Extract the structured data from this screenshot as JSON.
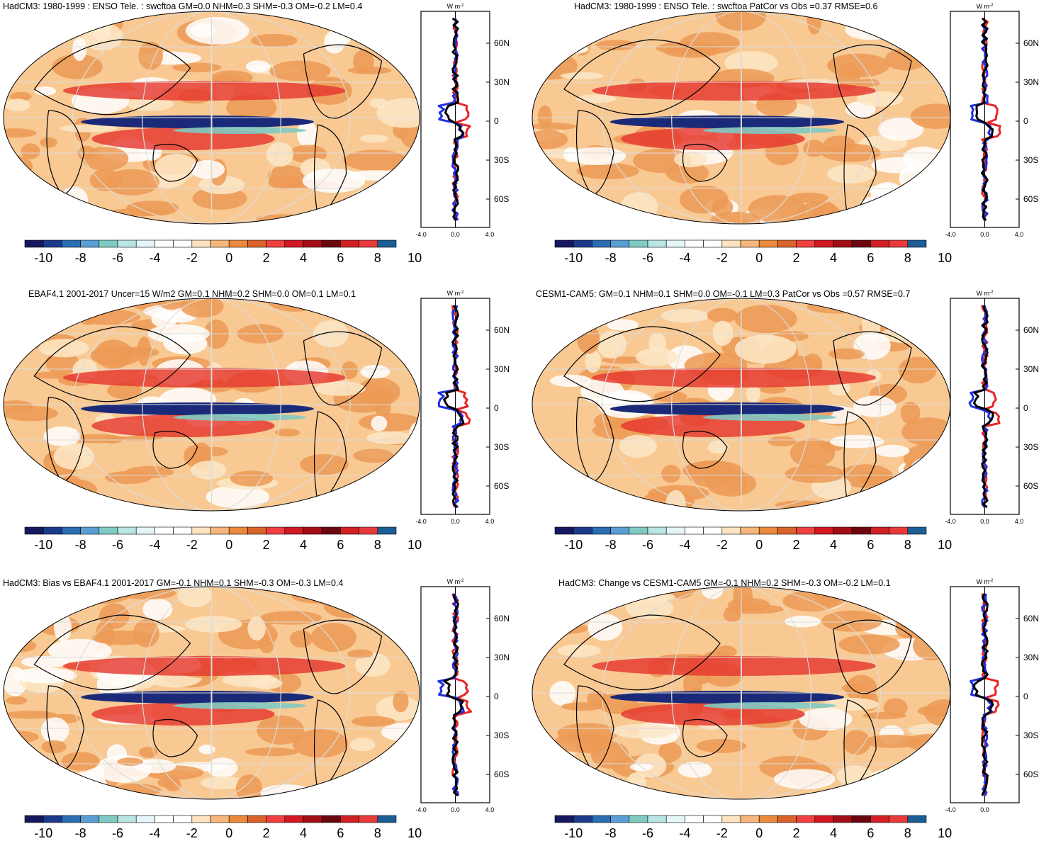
{
  "colorbar": {
    "colors": [
      "#15185e",
      "#1b3a8c",
      "#2a6db2",
      "#5a9ed6",
      "#7fcbc4",
      "#b9e6e2",
      "#e5f6f8",
      "#ffffff",
      "#ffffff",
      "#fde3c0",
      "#f7b77c",
      "#ec8a3c",
      "#d9632a",
      "#f14040",
      "#d21822",
      "#a30d15",
      "#6b0610",
      "#d11f24",
      "#e83a3a",
      "#1b5e95"
    ],
    "tick_labels": [
      "-10",
      "-8",
      "-6",
      "-4",
      "-2",
      "0",
      "2",
      "4",
      "6",
      "8",
      "10"
    ]
  },
  "profile": {
    "unit": "W m",
    "unit_sup": "-2",
    "lat_labels": [
      "60N",
      "30N",
      "0",
      "30S",
      "60S"
    ],
    "x_labels": [
      "-4.0",
      "0.0",
      "4.0"
    ]
  },
  "panels": [
    {
      "title": "HadCM3: 1980-1999 : ENSO Tele. : swcftoa GM=0.0 NHM=0.3 SHM=-0.3 OM=-0.2 LM=0.4",
      "x_labels": [
        "-4.0",
        "0.0",
        "4.0"
      ]
    },
    {
      "title": "HadCM3: 1980-1999 : ENSO Tele. : swcftoa PatCor vs Obs =0.37 RMSE=0.6",
      "x_labels": [
        "-4.0",
        "0.0",
        "4.0"
      ]
    },
    {
      "title": "EBAF4.1 2001-2017 Uncer=15 W/m2 GM=0.1 NHM=0.2 SHM=0.0 OM=0.1 LM=0.1",
      "x_labels": [
        "-4.0",
        "0.0",
        "4.0"
      ]
    },
    {
      "title": "CESM1-CAM5: GM=0.1 NHM=0.1 SHM=0.0 OM=-0.1 LM=0.3 PatCor vs Obs =0.57 RMSE=0.7",
      "x_labels": [
        "-4.0",
        "0.0",
        "4.0"
      ]
    },
    {
      "title": "HadCM3: Bias vs EBAF4.1 2001-2017 GM=-0.1 NHM=0.1 SHM=-0.3 OM=-0.3 LM=0.4",
      "x_labels": [
        "-4.0",
        "0.0",
        "4.0"
      ]
    },
    {
      "title": "HadCM3: Change vs CESM1-CAM5 GM=-0.1 NHM=0.2 SHM=-0.3 OM=-0.2 LM=0.1",
      "x_labels": [
        "-4.0",
        "0.0"
      ]
    }
  ]
}
